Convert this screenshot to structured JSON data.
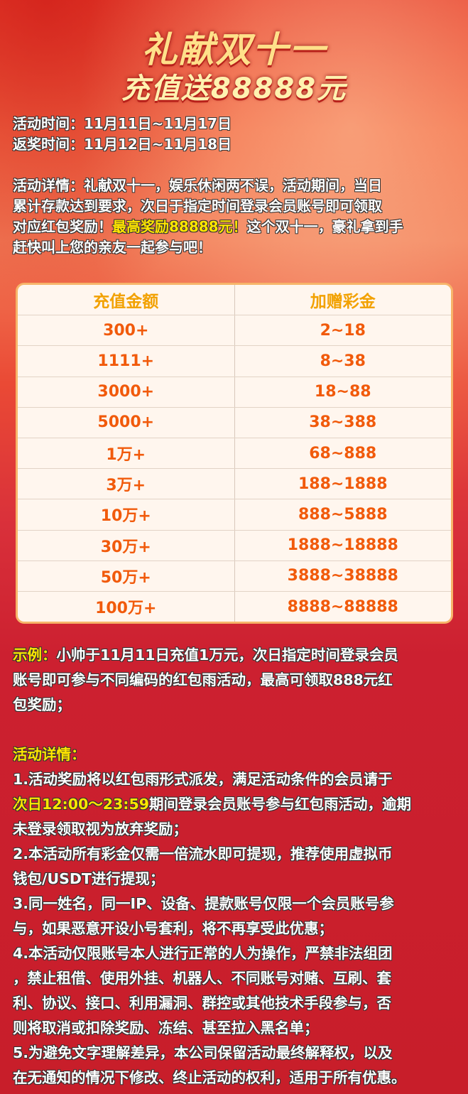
{
  "title": {
    "line1": "礼献双十一",
    "line2": "充值送88888元"
  },
  "times": [
    "活动时间：11月11日~11月17日",
    "返奖时间：11月12日~11月18日"
  ],
  "intro": [
    [
      {
        "t": "活动详情：礼献双十一，娱乐休闲两不误，活动期间，当日"
      }
    ],
    [
      {
        "t": "累计存款达到要求，次日于指定时间登录会员账号即可领取"
      }
    ],
    [
      {
        "t": "对应红包奖励！"
      },
      {
        "t": "最高奖励88888元！",
        "hl": true
      },
      {
        "t": "这个双十一，豪礼拿到手"
      }
    ],
    [
      {
        "t": "赶快叫上您的亲友一起参与吧！"
      }
    ]
  ],
  "table": {
    "headers": [
      "充值金额",
      "加赠彩金"
    ],
    "rows": [
      [
        "300+",
        "2~18"
      ],
      [
        "1111+",
        "8~38"
      ],
      [
        "3000+",
        "18~88"
      ],
      [
        "5000+",
        "38~388"
      ],
      [
        "1万+",
        "68~888"
      ],
      [
        "3万+",
        "188~1888"
      ],
      [
        "10万+",
        "888~5888"
      ],
      [
        "30万+",
        "1888~18888"
      ],
      [
        "50万+",
        "3888~38888"
      ],
      [
        "100万+",
        "8888~88888"
      ]
    ]
  },
  "details": [
    [
      {
        "t": "示例：",
        "hl": true
      },
      {
        "t": "小帅于11月11日充值1万元，次日指定时间登录会员"
      }
    ],
    [
      {
        "t": "账号即可参与不同编码的红包雨活动，最高可领取888元红"
      }
    ],
    [
      {
        "t": "包奖励；"
      }
    ],
    [
      {
        "t": ""
      }
    ],
    [
      {
        "t": "活动详情：",
        "hl": true
      }
    ],
    [
      {
        "t": "1.活动奖励将以红包雨形式派发，满足活动条件的会员请于"
      }
    ],
    [
      {
        "t": "次日12:00～23:59",
        "hl": true
      },
      {
        "t": "期间登录会员账号参与红包雨活动，逾期"
      }
    ],
    [
      {
        "t": "未登录领取视为放弃奖励；"
      }
    ],
    [
      {
        "t": "2.本活动所有彩金仅需一倍流水即可提现，推荐使用虚拟币"
      }
    ],
    [
      {
        "t": "钱包/USDT进行提现；"
      }
    ],
    [
      {
        "t": "3.同一姓名，同一IP、设备、提款账号仅限一个会员账号参"
      }
    ],
    [
      {
        "t": "与，如果恶意开设小号套利，将不再享受此优惠；"
      }
    ],
    [
      {
        "t": "4.本活动仅限账号本人进行正常的人为操作，严禁非法组团"
      }
    ],
    [
      {
        "t": "，禁止租借、使用外挂、机器人、不同账号对赌、互刷、套"
      }
    ],
    [
      {
        "t": "利、协议、接口、利用漏洞、群控或其他技术手段参与，否"
      }
    ],
    [
      {
        "t": "则将取消或扣除奖励、冻结、甚至拉入黑名单；"
      }
    ],
    [
      {
        "t": "5.为避免文字理解差异，本公司保留活动最终解释权，以及"
      }
    ],
    [
      {
        "t": "在无通知的情况下修改、终止活动的权利，适用于所有优惠。"
      }
    ]
  ],
  "colors": {
    "highlight": "#ffe600",
    "table_text": "#f15a0b",
    "table_header": "#f2a100"
  }
}
